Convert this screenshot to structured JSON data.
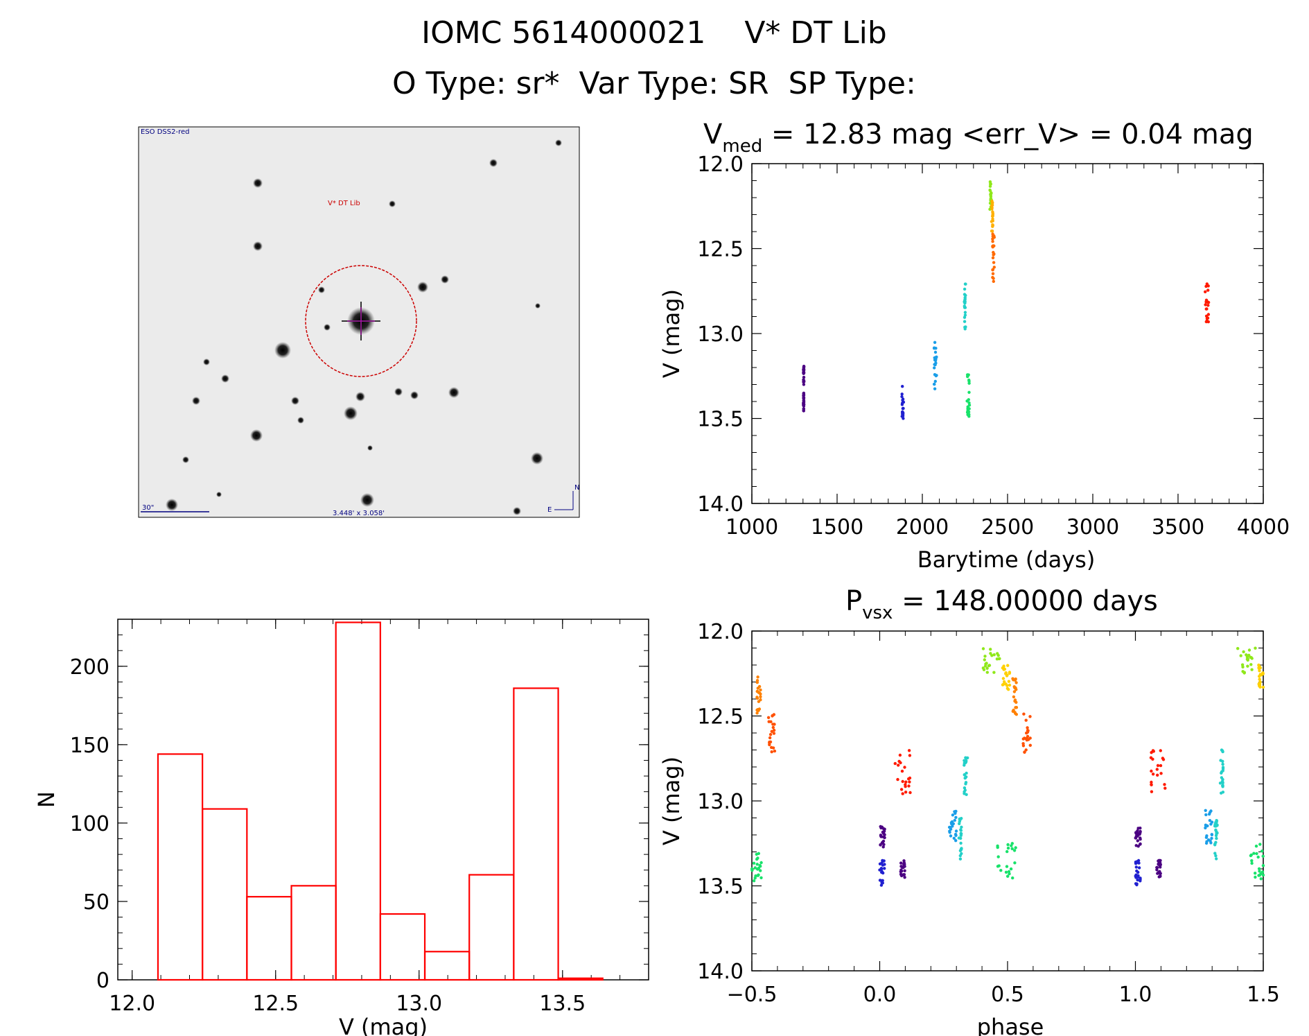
{
  "header": {
    "line1": "IOMC 5614000021    V* DT Lib",
    "line2": "O Type: sr*  Var Type: SR  SP Type:"
  },
  "thumbnail": {
    "survey_label": "ESO DSS2-red",
    "target_label": "V* DT Lib",
    "scale_label": "30\"",
    "fov_label": "3.448' x 3.058'",
    "compass_n": "N",
    "compass_e": "E"
  },
  "chart_data": [
    {
      "id": "lightcurve",
      "type": "scatter",
      "title_prefix": "V",
      "title_sub": "med",
      "title_rest": " = 12.83 mag <err_V> = 0.04 mag",
      "xlabel": "Barytime (days)",
      "ylabel": "V (mag)",
      "xlim": [
        1000,
        4000
      ],
      "ylim": [
        14.0,
        12.0
      ],
      "y_inverted": true,
      "xticks": [
        "1000",
        "1500",
        "2000",
        "2500",
        "3000",
        "3500",
        "4000"
      ],
      "yticks": [
        "12.0",
        "12.5",
        "13.0",
        "13.5",
        "14.0"
      ],
      "series": [
        {
          "color": "#4b0082",
          "x_range": [
            1302,
            1306
          ],
          "y_range": [
            13.17,
            13.3
          ]
        },
        {
          "color": "#4b0082",
          "x_range": [
            1302,
            1306
          ],
          "y_range": [
            13.35,
            13.46
          ]
        },
        {
          "color": "#2020d0",
          "x_range": [
            1880,
            1890
          ],
          "y_range": [
            13.31,
            13.5
          ]
        },
        {
          "color": "#1a9ee8",
          "x_range": [
            2068,
            2084
          ],
          "y_range": [
            13.05,
            13.33
          ]
        },
        {
          "color": "#23d0c8",
          "x_range": [
            2246,
            2254
          ],
          "y_range": [
            12.7,
            12.98
          ]
        },
        {
          "color": "#18e26a",
          "x_range": [
            2262,
            2278
          ],
          "y_range": [
            13.22,
            13.49
          ]
        },
        {
          "color": "#8fe81a",
          "x_range": [
            2396,
            2406
          ],
          "y_range": [
            12.1,
            12.27
          ]
        },
        {
          "color": "#ffb000",
          "x_range": [
            2406,
            2414
          ],
          "y_range": [
            12.22,
            12.4
          ]
        },
        {
          "color": "#ff6a00",
          "x_range": [
            2412,
            2424
          ],
          "y_range": [
            12.4,
            12.72
          ]
        },
        {
          "color": "#ff1a00",
          "x_range": [
            3658,
            3680
          ],
          "y_range": [
            12.7,
            12.94
          ]
        }
      ]
    },
    {
      "id": "histogram",
      "type": "bar",
      "xlabel": "V (mag)",
      "ylabel": "N",
      "xlim": [
        11.95,
        13.8
      ],
      "ylim": [
        0,
        230
      ],
      "xticks": [
        "12.0",
        "12.5",
        "13.0",
        "13.5"
      ],
      "yticks": [
        "0",
        "50",
        "100",
        "150",
        "200"
      ],
      "bin_edges": [
        12.09,
        12.245,
        12.4,
        12.555,
        12.71,
        12.865,
        13.02,
        13.175,
        13.33,
        13.485,
        13.64
      ],
      "values": [
        144,
        109,
        53,
        60,
        228,
        42,
        18,
        67,
        186,
        1
      ],
      "color": "#ff0000"
    },
    {
      "id": "phased",
      "type": "scatter",
      "title_prefix": "P",
      "title_sub": "vsx",
      "title_rest": " = 148.00000 days",
      "xlabel": "phase",
      "ylabel": "V (mag)",
      "xlim": [
        -0.5,
        1.5
      ],
      "ylim": [
        14.0,
        12.0
      ],
      "y_inverted": true,
      "xticks": [
        "−0.5",
        "0.0",
        "0.5",
        "1.0",
        "1.5"
      ],
      "yticks": [
        "12.0",
        "12.5",
        "13.0",
        "13.5",
        "14.0"
      ],
      "series": [
        {
          "color": "#4b0082",
          "x_range": [
            0.0,
            0.02
          ],
          "y_range": [
            13.15,
            13.28
          ]
        },
        {
          "color": "#2020d0",
          "x_range": [
            0.0,
            0.02
          ],
          "y_range": [
            13.35,
            13.5
          ]
        },
        {
          "color": "#4b0082",
          "x_range": [
            0.08,
            0.1
          ],
          "y_range": [
            13.35,
            13.45
          ]
        },
        {
          "color": "#ff1a00",
          "x_range": [
            0.06,
            0.12
          ],
          "y_range": [
            12.7,
            12.96
          ]
        },
        {
          "color": "#1a9ee8",
          "x_range": [
            0.27,
            0.3
          ],
          "y_range": [
            13.05,
            13.25
          ]
        },
        {
          "color": "#23d0c8",
          "x_range": [
            0.31,
            0.32
          ],
          "y_range": [
            13.1,
            13.35
          ]
        },
        {
          "color": "#23d0c8",
          "x_range": [
            0.33,
            0.345
          ],
          "y_range": [
            12.7,
            12.98
          ]
        },
        {
          "color": "#18e26a",
          "x_range": [
            0.46,
            0.54
          ],
          "y_range": [
            13.25,
            13.48
          ]
        },
        {
          "color": "#8fe81a",
          "x_range": [
            0.4,
            0.47
          ],
          "y_range": [
            12.1,
            12.26
          ]
        },
        {
          "color": "#ffd000",
          "x_range": [
            0.48,
            0.51
          ],
          "y_range": [
            12.2,
            12.35
          ]
        },
        {
          "color": "#ff8000",
          "x_range": [
            0.52,
            0.535
          ],
          "y_range": [
            12.27,
            12.5
          ]
        },
        {
          "color": "#ff5000",
          "x_range": [
            0.56,
            0.59
          ],
          "y_range": [
            12.48,
            12.72
          ]
        },
        {
          "color": "#18e26a",
          "x_range": [
            -0.5,
            -0.46
          ],
          "y_range": [
            13.3,
            13.48
          ]
        },
        {
          "color": "#ff8000",
          "x_range": [
            -0.48,
            -0.465
          ],
          "y_range": [
            12.27,
            12.5
          ]
        },
        {
          "color": "#ff5000",
          "x_range": [
            -0.44,
            -0.41
          ],
          "y_range": [
            12.48,
            12.72
          ]
        },
        {
          "color": "#4b0082",
          "x_range": [
            1.0,
            1.02
          ],
          "y_range": [
            13.15,
            13.28
          ]
        },
        {
          "color": "#2020d0",
          "x_range": [
            1.0,
            1.02
          ],
          "y_range": [
            13.35,
            13.5
          ]
        },
        {
          "color": "#4b0082",
          "x_range": [
            1.08,
            1.1
          ],
          "y_range": [
            13.35,
            13.45
          ]
        },
        {
          "color": "#ff1a00",
          "x_range": [
            1.06,
            1.12
          ],
          "y_range": [
            12.7,
            12.96
          ]
        },
        {
          "color": "#1a9ee8",
          "x_range": [
            1.27,
            1.3
          ],
          "y_range": [
            13.05,
            13.25
          ]
        },
        {
          "color": "#23d0c8",
          "x_range": [
            1.31,
            1.32
          ],
          "y_range": [
            13.1,
            13.35
          ]
        },
        {
          "color": "#23d0c8",
          "x_range": [
            1.33,
            1.345
          ],
          "y_range": [
            12.7,
            12.98
          ]
        },
        {
          "color": "#18e26a",
          "x_range": [
            1.45,
            1.5
          ],
          "y_range": [
            13.25,
            13.48
          ]
        },
        {
          "color": "#8fe81a",
          "x_range": [
            1.4,
            1.47
          ],
          "y_range": [
            12.1,
            12.26
          ]
        },
        {
          "color": "#ffd000",
          "x_range": [
            1.48,
            1.5
          ],
          "y_range": [
            12.2,
            12.35
          ]
        }
      ]
    }
  ]
}
